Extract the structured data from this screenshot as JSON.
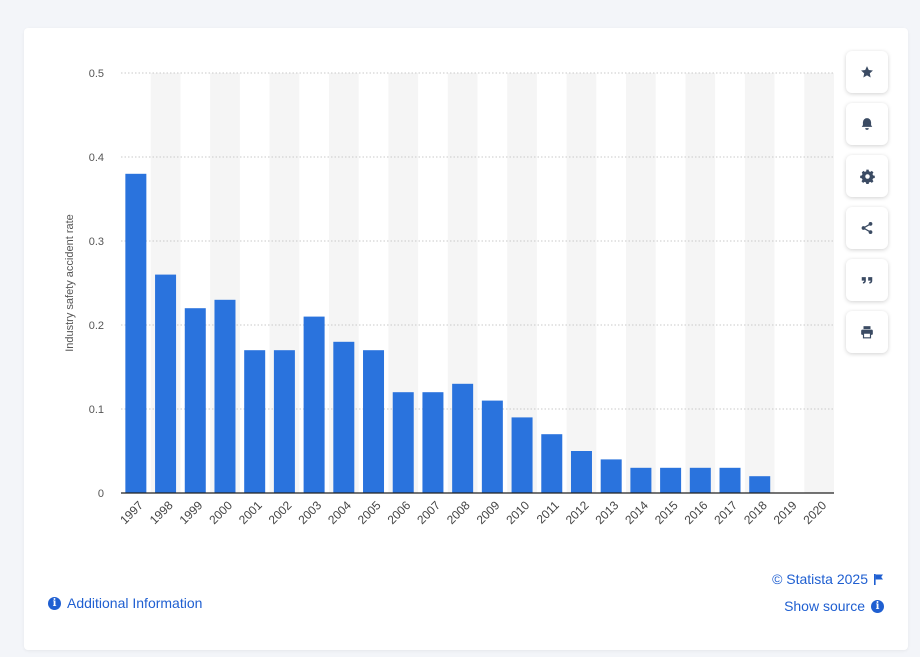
{
  "chart_data": {
    "type": "bar",
    "title": "",
    "xlabel": "",
    "ylabel": "Industry safety accident rate",
    "ylim": [
      0,
      0.5
    ],
    "yticks": [
      "0",
      "0.1",
      "0.2",
      "0.3",
      "0.4",
      "0.5"
    ],
    "grid": true,
    "categories": [
      "1997",
      "1998",
      "1999",
      "2000",
      "2001",
      "2002",
      "2003",
      "2004",
      "2005",
      "2006",
      "2007",
      "2008",
      "2009",
      "2010",
      "2011",
      "2012",
      "2013",
      "2014",
      "2015",
      "2016",
      "2017",
      "2018",
      "2019",
      "2020"
    ],
    "values": [
      0.38,
      0.26,
      0.22,
      0.23,
      0.17,
      0.17,
      0.21,
      0.18,
      0.17,
      0.12,
      0.12,
      0.13,
      0.11,
      0.09,
      0.07,
      0.05,
      0.04,
      0.03,
      0.03,
      0.03,
      0.03,
      0.02,
      0,
      0
    ],
    "bar_color": "#2a73dd"
  },
  "toolbar": {
    "buttons": [
      {
        "name": "favorite-button",
        "icon": "star-icon"
      },
      {
        "name": "notification-button",
        "icon": "bell-icon"
      },
      {
        "name": "settings-button",
        "icon": "gear-icon"
      },
      {
        "name": "share-button",
        "icon": "share-icon"
      },
      {
        "name": "cite-button",
        "icon": "quote-icon"
      },
      {
        "name": "print-button",
        "icon": "printer-icon"
      }
    ]
  },
  "footer": {
    "copyright": "© Statista 2025",
    "show_source": "Show source",
    "additional_info": "Additional Information"
  },
  "colors": {
    "accent": "#1f5fd1",
    "icon": "#3b4b63"
  }
}
